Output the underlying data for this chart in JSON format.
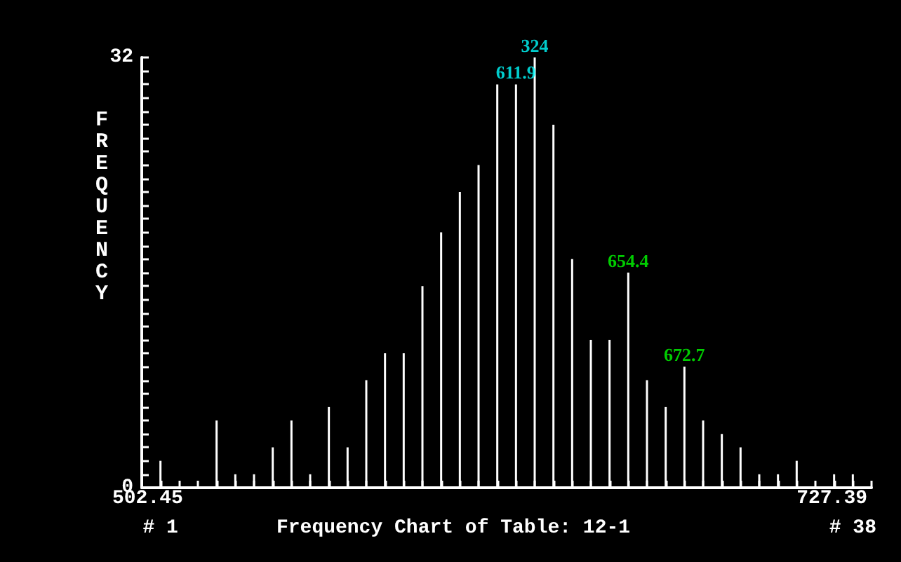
{
  "chart_data": {
    "type": "bar",
    "title": "Frequency Chart of Table: 12-1",
    "ylabel": "FREQUENCY",
    "color": "#ffffff",
    "x": [
      1,
      2,
      3,
      4,
      5,
      6,
      7,
      8,
      9,
      10,
      11,
      12,
      13,
      14,
      15,
      16,
      17,
      18,
      19,
      20,
      21,
      22,
      23,
      24,
      25,
      26,
      27,
      28,
      29,
      30,
      31,
      32,
      33,
      34,
      35,
      36,
      37,
      38
    ],
    "values": [
      2,
      0,
      0,
      5,
      1,
      1,
      3,
      5,
      1,
      6,
      3,
      8,
      10,
      10,
      15,
      19,
      22,
      24,
      30,
      30,
      32,
      27,
      17,
      11,
      11,
      16,
      8,
      6,
      9,
      5,
      4,
      3,
      1,
      1,
      2,
      0,
      1,
      1
    ],
    "xlim": [
      0,
      39
    ],
    "xticks": [
      {
        "value": 0,
        "label": null
      },
      {
        "value": 1,
        "label": "# 1"
      },
      {
        "value": 2,
        "label": null
      },
      {
        "value": 3,
        "label": null
      },
      {
        "value": 4,
        "label": null
      },
      {
        "value": 5,
        "label": null
      },
      {
        "value": 6,
        "label": null
      },
      {
        "value": 7,
        "label": null
      },
      {
        "value": 8,
        "label": null
      },
      {
        "value": 9,
        "label": null
      },
      {
        "value": 10,
        "label": null
      },
      {
        "value": 11,
        "label": null
      },
      {
        "value": 12,
        "label": null
      },
      {
        "value": 13,
        "label": null
      },
      {
        "value": 14,
        "label": null
      },
      {
        "value": 15,
        "label": null
      },
      {
        "value": 16,
        "label": null
      },
      {
        "value": 17,
        "label": null
      },
      {
        "value": 18,
        "label": null
      },
      {
        "value": 19,
        "label": null
      },
      {
        "value": 20,
        "label": null
      },
      {
        "value": 21,
        "label": null
      },
      {
        "value": 22,
        "label": null
      },
      {
        "value": 23,
        "label": null
      },
      {
        "value": 24,
        "label": null
      },
      {
        "value": 25,
        "label": null
      },
      {
        "value": 26,
        "label": null
      },
      {
        "value": 27,
        "label": null
      },
      {
        "value": 28,
        "label": null
      },
      {
        "value": 29,
        "label": null
      },
      {
        "value": 30,
        "label": null
      },
      {
        "value": 31,
        "label": null
      },
      {
        "value": 32,
        "label": null
      },
      {
        "value": 33,
        "label": null
      },
      {
        "value": 34,
        "label": null
      },
      {
        "value": 35,
        "label": null
      },
      {
        "value": 36,
        "label": null
      },
      {
        "value": 37,
        "label": null
      },
      {
        "value": 38,
        "label": "# 38"
      },
      {
        "value": 39,
        "label": null
      }
    ],
    "ylim": [
      0,
      32
    ],
    "yticks": [
      0,
      {
        "value": 1,
        "label": null
      },
      {
        "value": 2,
        "label": null
      },
      {
        "value": 3,
        "label": null
      },
      {
        "value": 4,
        "label": null
      },
      {
        "value": 5,
        "label": null
      },
      {
        "value": 6,
        "label": null
      },
      {
        "value": 7,
        "label": null
      },
      {
        "value": 8,
        "label": null
      },
      {
        "value": 9,
        "label": null
      },
      {
        "value": 10,
        "label": null
      },
      {
        "value": 11,
        "label": null
      },
      {
        "value": 12,
        "label": null
      },
      {
        "value": 13,
        "label": null
      },
      {
        "value": 14,
        "label": null
      },
      {
        "value": 15,
        "label": null
      },
      {
        "value": 16,
        "label": null
      },
      {
        "value": 17,
        "label": null
      },
      {
        "value": 18,
        "label": null
      },
      {
        "value": 19,
        "label": null
      },
      {
        "value": 20,
        "label": null
      },
      {
        "value": 21,
        "label": null
      },
      {
        "value": 22,
        "label": null
      },
      {
        "value": 23,
        "label": null
      },
      {
        "value": 24,
        "label": null
      },
      {
        "value": 25,
        "label": null
      },
      {
        "value": 26,
        "label": null
      },
      {
        "value": 27,
        "label": null
      },
      {
        "value": 28,
        "label": null
      },
      {
        "value": 29,
        "label": null
      },
      {
        "value": 30,
        "label": null
      },
      {
        "value": 31,
        "label": null
      },
      32
    ],
    "grid": false,
    "annotations": [
      {
        "text": "611.9",
        "x": 20,
        "y": 30
      },
      {
        "text": "324",
        "x": 21,
        "y": 32
      },
      {
        "text": "654.4",
        "x": 26,
        "y": 16
      },
      {
        "text": "672.7",
        "x": 29,
        "y": 9
      },
      "502.45",
      "727.39"
    ]
  }
}
